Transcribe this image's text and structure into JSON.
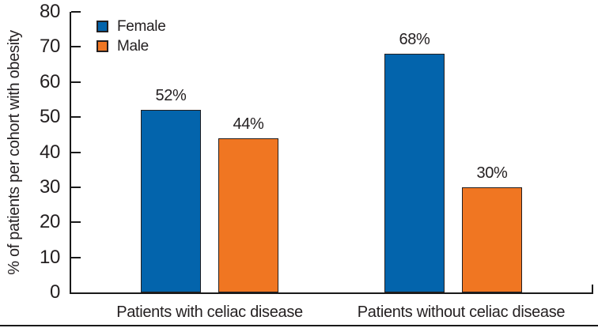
{
  "chart_data": {
    "type": "bar",
    "title": "",
    "xlabel": "",
    "ylabel": "% of patients per cohort with obesity",
    "categories": [
      "Patients with celiac disease",
      "Patients without celiac disease"
    ],
    "series": [
      {
        "name": "Female",
        "color": "#0364AC",
        "values": [
          52,
          68
        ],
        "labels": [
          "52%",
          "68%"
        ]
      },
      {
        "name": "Male",
        "color": "#F07622",
        "values": [
          44,
          30
        ],
        "labels": [
          "44%",
          "30%"
        ]
      }
    ],
    "ylim": [
      0,
      80
    ],
    "yticks": [
      0,
      10,
      20,
      30,
      40,
      50,
      60,
      70,
      80
    ],
    "grid": false,
    "legend_position": "top-left",
    "colors": {
      "axis": "#1A1A1A",
      "text": "#231F20",
      "bar_outline": "#231F20",
      "background": "#FFFFFF"
    }
  }
}
